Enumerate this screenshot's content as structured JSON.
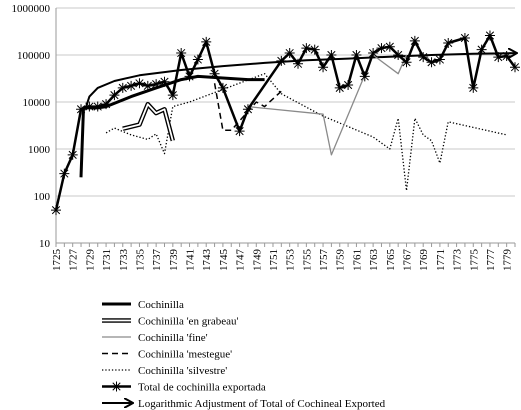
{
  "chart_data": {
    "type": "line",
    "title": "",
    "xlabel": "",
    "ylabel": "",
    "y_scale": "log",
    "ylim": [
      10,
      1000000
    ],
    "xlim": [
      1725,
      1780
    ],
    "y_ticks": [
      10,
      100,
      1000,
      10000,
      100000,
      1000000
    ],
    "y_tick_labels": [
      "10",
      "100",
      "1000",
      "10000",
      "100000",
      "1000000"
    ],
    "x_tick_labels": [
      "1725",
      "1727",
      "1729",
      "1731",
      "1733",
      "1735",
      "1737",
      "1739",
      "1741",
      "1743",
      "1745",
      "1747",
      "1749",
      "1751",
      "1753",
      "1755",
      "1757",
      "1759",
      "1761",
      "1763",
      "1765",
      "1767",
      "1769",
      "1771",
      "1773",
      "1775",
      "1777",
      "1779"
    ],
    "grid": "horizontal",
    "legend_position": "bottom",
    "series": [
      {
        "name": "Cochinilla",
        "style": "thick",
        "color": "#000000",
        "points": [
          [
            1728,
            250
          ],
          [
            1728.3,
            7500
          ],
          [
            1730,
            7500
          ],
          [
            1731,
            8000
          ],
          [
            1734,
            13000
          ],
          [
            1737,
            20000
          ],
          [
            1740,
            30000
          ],
          [
            1742,
            35000
          ],
          [
            1748,
            30000
          ],
          [
            1750,
            30000
          ]
        ]
      },
      {
        "name": "Cochinilla 'en grabeau'",
        "style": "double",
        "color": "#000000",
        "points": [
          [
            1733,
            2700
          ],
          [
            1735,
            3300
          ],
          [
            1736,
            9000
          ],
          [
            1737,
            5800
          ],
          [
            1738,
            7000
          ],
          [
            1739,
            1500
          ]
        ]
      },
      {
        "name": "Cochinilla 'fine'",
        "style": "thin-gray",
        "color": "#808080",
        "points": [
          [
            1748,
            8000
          ],
          [
            1757,
            5500
          ],
          [
            1758,
            750
          ],
          [
            1763,
            100000
          ],
          [
            1766,
            40000
          ],
          [
            1767,
            100000
          ]
        ]
      },
      {
        "name": "Cochinilla 'mestegue'",
        "style": "dashed",
        "color": "#000000",
        "points": [
          [
            1744,
            25000
          ],
          [
            1745,
            2500
          ],
          [
            1746,
            2500
          ],
          [
            1749,
            10000
          ],
          [
            1750,
            8000
          ],
          [
            1752,
            17000
          ]
        ]
      },
      {
        "name": "Cochinilla 'silvestre'",
        "style": "dotted",
        "color": "#000000",
        "points": [
          [
            1731,
            2200
          ],
          [
            1732,
            2800
          ],
          [
            1734,
            2000
          ],
          [
            1736,
            1600
          ],
          [
            1737,
            2100
          ],
          [
            1738,
            800
          ],
          [
            1739,
            8000
          ],
          [
            1741,
            10000
          ],
          [
            1750,
            40000
          ],
          [
            1752,
            15000
          ],
          [
            1753,
            12000
          ],
          [
            1757,
            5000
          ],
          [
            1763,
            1800
          ],
          [
            1765,
            1000
          ],
          [
            1766,
            4500
          ],
          [
            1767,
            130
          ],
          [
            1768,
            4500
          ],
          [
            1769,
            2000
          ],
          [
            1770,
            1500
          ],
          [
            1771,
            500
          ],
          [
            1772,
            3800
          ],
          [
            1779,
            2000
          ]
        ]
      },
      {
        "name": "Total de cochinilla exportada",
        "style": "star-marker",
        "color": "#000000",
        "points": [
          [
            1725,
            50
          ],
          [
            1726,
            300
          ],
          [
            1727,
            750
          ],
          [
            1728,
            7000
          ],
          [
            1729,
            8000
          ],
          [
            1730,
            8000
          ],
          [
            1731,
            9000
          ],
          [
            1732,
            14000
          ],
          [
            1733,
            20000
          ],
          [
            1734,
            22000
          ],
          [
            1735,
            25000
          ],
          [
            1736,
            22000
          ],
          [
            1737,
            24000
          ],
          [
            1738,
            27000
          ],
          [
            1739,
            14000
          ],
          [
            1740,
            110000
          ],
          [
            1741,
            35000
          ],
          [
            1742,
            80000
          ],
          [
            1743,
            190000
          ],
          [
            1744,
            40000
          ],
          [
            1745,
            20000
          ],
          [
            1747,
            2400
          ],
          [
            1748,
            7000
          ],
          [
            1752,
            75000
          ],
          [
            1753,
            110000
          ],
          [
            1754,
            65000
          ],
          [
            1755,
            140000
          ],
          [
            1756,
            130000
          ],
          [
            1757,
            55000
          ],
          [
            1758,
            100000
          ],
          [
            1759,
            20000
          ],
          [
            1760,
            23000
          ],
          [
            1761,
            100000
          ],
          [
            1762,
            35000
          ],
          [
            1763,
            110000
          ],
          [
            1764,
            140000
          ],
          [
            1765,
            150000
          ],
          [
            1766,
            100000
          ],
          [
            1767,
            70000
          ],
          [
            1768,
            200000
          ],
          [
            1769,
            90000
          ],
          [
            1770,
            70000
          ],
          [
            1771,
            80000
          ],
          [
            1772,
            180000
          ],
          [
            1774,
            230000
          ],
          [
            1775,
            20000
          ],
          [
            1776,
            130000
          ],
          [
            1777,
            260000
          ],
          [
            1778,
            90000
          ],
          [
            1779,
            95000
          ],
          [
            1780,
            55000
          ]
        ]
      },
      {
        "name": "Logarithmic Adjustment of Total of Cochineal Exported",
        "style": "arrow",
        "color": "#000000",
        "points": [
          [
            1728.5,
            7000
          ],
          [
            1729,
            13000
          ],
          [
            1730,
            20000
          ],
          [
            1732,
            28000
          ],
          [
            1735,
            37000
          ],
          [
            1740,
            48000
          ],
          [
            1745,
            58000
          ],
          [
            1750,
            68000
          ],
          [
            1755,
            77000
          ],
          [
            1760,
            84000
          ],
          [
            1765,
            92000
          ],
          [
            1770,
            100000
          ],
          [
            1775,
            106000
          ],
          [
            1780,
            110000
          ]
        ]
      }
    ]
  }
}
